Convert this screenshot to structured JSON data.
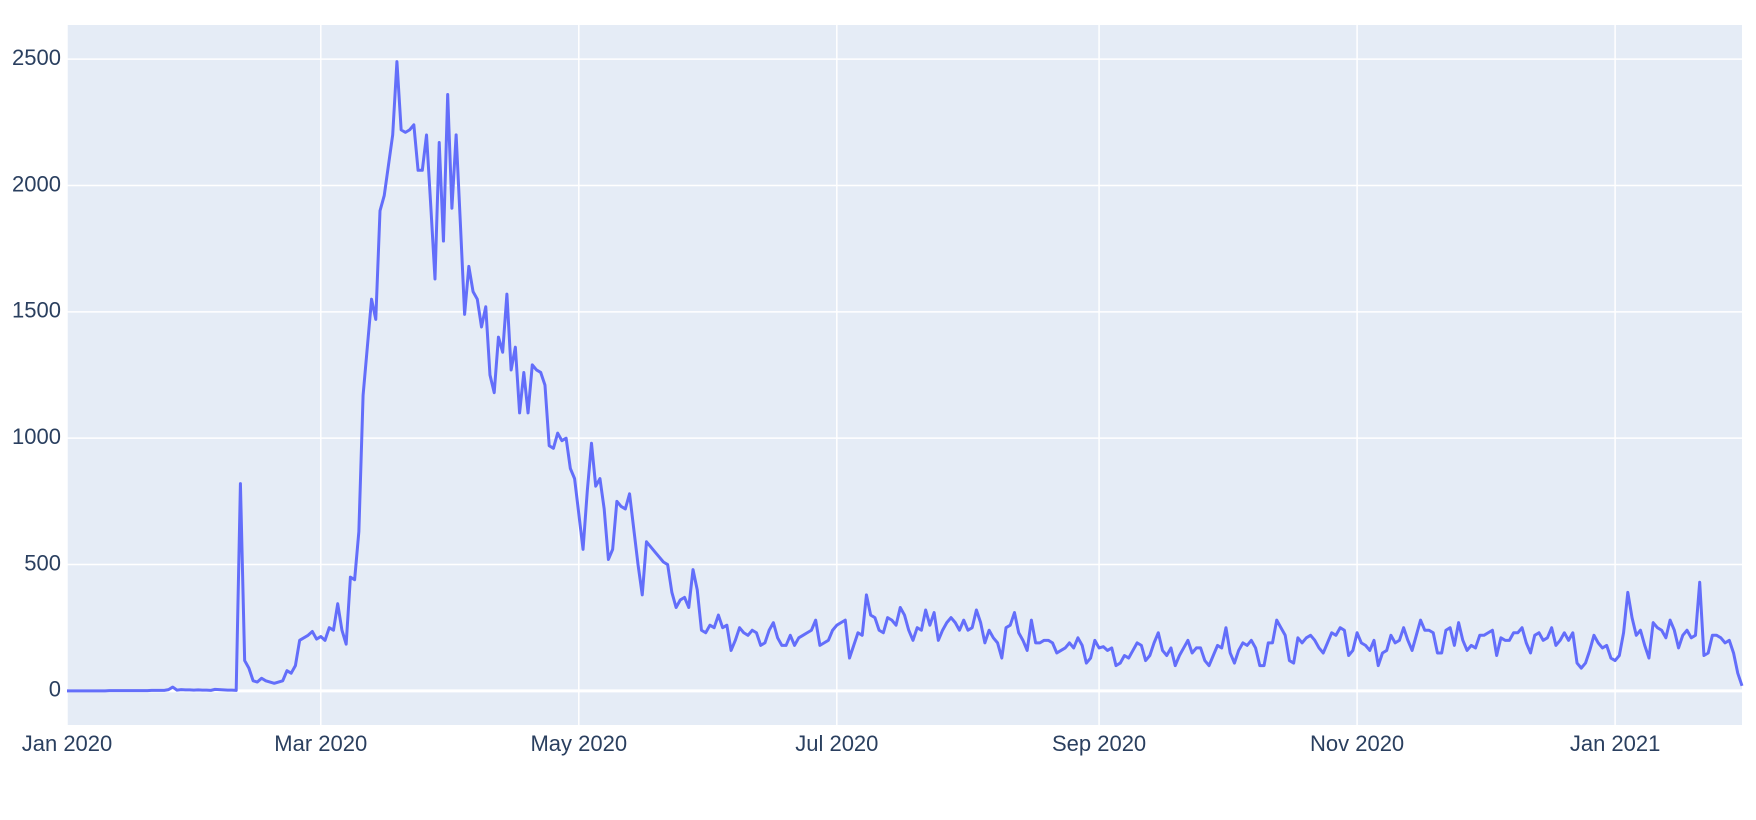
{
  "chart_data": {
    "type": "line",
    "x": [
      "2020-01-01",
      "2020-01-02",
      "2020-01-03",
      "2020-01-04",
      "2020-01-05",
      "2020-01-06",
      "2020-01-07",
      "2020-01-08",
      "2020-01-09",
      "2020-01-10",
      "2020-01-11",
      "2020-01-12",
      "2020-01-13",
      "2020-01-14",
      "2020-01-15",
      "2020-01-16",
      "2020-01-17",
      "2020-01-18",
      "2020-01-19",
      "2020-01-20",
      "2020-01-21",
      "2020-01-22",
      "2020-01-23",
      "2020-01-24",
      "2020-01-25",
      "2020-01-26",
      "2020-01-27",
      "2020-01-28",
      "2020-01-29",
      "2020-01-30",
      "2020-01-31",
      "2020-02-01",
      "2020-02-02",
      "2020-02-03",
      "2020-02-04",
      "2020-02-05",
      "2020-02-06",
      "2020-02-07",
      "2020-02-08",
      "2020-02-09",
      "2020-02-10",
      "2020-02-11",
      "2020-02-12",
      "2020-02-13",
      "2020-02-14",
      "2020-02-15",
      "2020-02-16",
      "2020-02-17",
      "2020-02-18",
      "2020-02-19",
      "2020-02-20",
      "2020-02-21",
      "2020-02-22",
      "2020-02-23",
      "2020-02-24",
      "2020-02-25",
      "2020-02-26",
      "2020-02-27",
      "2020-02-28",
      "2020-02-29",
      "2020-03-01",
      "2020-03-02",
      "2020-03-03",
      "2020-03-04",
      "2020-03-05",
      "2020-03-06",
      "2020-03-07",
      "2020-03-08",
      "2020-03-09",
      "2020-03-10",
      "2020-03-11",
      "2020-03-12",
      "2020-03-13",
      "2020-03-14",
      "2020-03-15",
      "2020-03-16",
      "2020-03-17",
      "2020-03-18",
      "2020-03-19",
      "2020-03-20",
      "2020-03-21",
      "2020-03-22",
      "2020-03-23",
      "2020-03-24",
      "2020-03-25",
      "2020-03-26",
      "2020-03-27",
      "2020-03-28",
      "2020-03-29",
      "2020-03-30",
      "2020-03-31",
      "2020-04-01",
      "2020-04-02",
      "2020-04-03",
      "2020-04-04",
      "2020-04-05",
      "2020-04-06",
      "2020-04-07",
      "2020-04-08",
      "2020-04-09",
      "2020-04-10",
      "2020-04-11",
      "2020-04-12",
      "2020-04-13",
      "2020-04-14",
      "2020-04-15",
      "2020-04-16",
      "2020-04-17",
      "2020-04-18",
      "2020-04-19",
      "2020-04-20",
      "2020-04-21",
      "2020-04-22",
      "2020-04-23",
      "2020-04-24",
      "2020-04-25",
      "2020-04-26",
      "2020-04-27",
      "2020-04-28",
      "2020-04-29",
      "2020-04-30",
      "2020-05-01",
      "2020-05-02",
      "2020-05-03",
      "2020-05-04",
      "2020-05-05",
      "2020-05-06",
      "2020-05-07",
      "2020-05-08",
      "2020-05-09",
      "2020-05-10",
      "2020-05-11",
      "2020-05-12",
      "2020-05-13",
      "2020-05-14",
      "2020-05-15",
      "2020-05-16",
      "2020-05-17",
      "2020-05-18",
      "2020-05-19",
      "2020-05-20",
      "2020-05-21",
      "2020-05-22",
      "2020-05-23",
      "2020-05-24",
      "2020-05-25",
      "2020-05-26",
      "2020-05-27",
      "2020-05-28",
      "2020-05-29",
      "2020-05-30",
      "2020-05-31",
      "2020-06-01",
      "2020-06-02",
      "2020-06-03",
      "2020-06-04",
      "2020-06-05",
      "2020-06-06",
      "2020-06-07",
      "2020-06-08",
      "2020-06-09",
      "2020-06-10",
      "2020-06-11",
      "2020-06-12",
      "2020-06-13",
      "2020-06-14",
      "2020-06-15",
      "2020-06-16",
      "2020-06-17",
      "2020-06-18",
      "2020-06-19",
      "2020-06-20",
      "2020-06-21",
      "2020-06-22",
      "2020-06-23",
      "2020-06-24",
      "2020-06-25",
      "2020-06-26",
      "2020-06-27",
      "2020-06-28",
      "2020-06-29",
      "2020-06-30",
      "2020-07-01",
      "2020-07-02",
      "2020-07-03",
      "2020-07-04",
      "2020-07-05",
      "2020-07-06",
      "2020-07-07",
      "2020-07-08",
      "2020-07-09",
      "2020-07-10",
      "2020-07-11",
      "2020-07-12",
      "2020-07-13",
      "2020-07-14",
      "2020-07-15",
      "2020-07-16",
      "2020-07-17",
      "2020-07-18",
      "2020-07-19",
      "2020-07-20",
      "2020-07-21",
      "2020-07-22",
      "2020-07-23",
      "2020-07-24",
      "2020-07-25",
      "2020-07-26",
      "2020-07-27",
      "2020-07-28",
      "2020-07-29",
      "2020-07-30",
      "2020-07-31",
      "2020-08-01",
      "2020-08-02",
      "2020-08-03",
      "2020-08-04",
      "2020-08-05",
      "2020-08-06",
      "2020-08-07",
      "2020-08-08",
      "2020-08-09",
      "2020-08-10",
      "2020-08-11",
      "2020-08-12",
      "2020-08-13",
      "2020-08-14",
      "2020-08-15",
      "2020-08-16",
      "2020-08-17",
      "2020-08-18",
      "2020-08-19",
      "2020-08-20",
      "2020-08-21",
      "2020-08-22",
      "2020-08-23",
      "2020-08-24",
      "2020-08-25",
      "2020-08-26",
      "2020-08-27",
      "2020-08-28",
      "2020-08-29",
      "2020-08-30",
      "2020-08-31",
      "2020-09-01",
      "2020-09-02",
      "2020-09-03",
      "2020-09-04",
      "2020-09-05",
      "2020-09-06",
      "2020-09-07",
      "2020-09-08",
      "2020-09-09",
      "2020-09-10",
      "2020-09-11",
      "2020-09-12",
      "2020-09-13",
      "2020-09-14",
      "2020-09-15",
      "2020-09-16",
      "2020-09-17",
      "2020-09-18",
      "2020-09-19",
      "2020-09-20",
      "2020-09-21",
      "2020-09-22",
      "2020-09-23",
      "2020-09-24",
      "2020-09-25",
      "2020-09-26",
      "2020-09-27",
      "2020-09-28",
      "2020-09-29",
      "2020-09-30",
      "2020-10-01",
      "2020-10-02",
      "2020-10-03",
      "2020-10-04",
      "2020-10-05",
      "2020-10-06",
      "2020-10-07",
      "2020-10-08",
      "2020-10-09",
      "2020-10-10",
      "2020-10-11",
      "2020-10-12",
      "2020-10-13",
      "2020-10-14",
      "2020-10-15",
      "2020-10-16",
      "2020-10-17",
      "2020-10-18",
      "2020-10-19",
      "2020-10-20",
      "2020-10-21",
      "2020-10-22",
      "2020-10-23",
      "2020-10-24",
      "2020-10-25",
      "2020-10-26",
      "2020-10-27",
      "2020-10-28",
      "2020-10-29",
      "2020-10-30",
      "2020-10-31",
      "2020-11-01",
      "2020-11-02",
      "2020-11-03",
      "2020-11-04",
      "2020-11-05",
      "2020-11-06",
      "2020-11-07",
      "2020-11-08",
      "2020-11-09",
      "2020-11-10",
      "2020-11-11",
      "2020-11-12",
      "2020-11-13",
      "2020-11-14",
      "2020-11-15",
      "2020-11-16",
      "2020-11-17",
      "2020-11-18",
      "2020-11-19",
      "2020-11-20",
      "2020-11-21",
      "2020-11-22",
      "2020-11-23",
      "2020-11-24",
      "2020-11-25",
      "2020-11-26",
      "2020-11-27",
      "2020-11-28",
      "2020-11-29",
      "2020-11-30",
      "2020-12-01",
      "2020-12-02",
      "2020-12-03",
      "2020-12-04",
      "2020-12-05",
      "2020-12-06",
      "2020-12-07",
      "2020-12-08",
      "2020-12-09",
      "2020-12-10",
      "2020-12-11",
      "2020-12-12",
      "2020-12-13",
      "2020-12-14",
      "2020-12-15",
      "2020-12-16",
      "2020-12-17",
      "2020-12-18",
      "2020-12-19",
      "2020-12-20",
      "2020-12-21",
      "2020-12-22",
      "2020-12-23",
      "2020-12-24",
      "2020-12-25",
      "2020-12-26",
      "2020-12-27",
      "2020-12-28",
      "2020-12-29",
      "2020-12-30",
      "2020-12-31",
      "2021-01-01",
      "2021-01-02",
      "2021-01-03",
      "2021-01-04",
      "2021-01-05",
      "2021-01-06",
      "2021-01-07",
      "2021-01-08",
      "2021-01-09",
      "2021-01-10",
      "2021-01-11",
      "2021-01-12",
      "2021-01-13",
      "2021-01-14",
      "2021-01-15",
      "2021-01-16",
      "2021-01-17",
      "2021-01-18",
      "2021-01-19",
      "2021-01-20",
      "2021-01-21",
      "2021-01-22",
      "2021-01-23",
      "2021-01-24",
      "2021-01-25",
      "2021-01-26",
      "2021-01-27",
      "2021-01-28",
      "2021-01-29",
      "2021-01-30",
      "2021-01-31"
    ],
    "series": [
      {
        "color": "#636efa",
        "values": [
          0,
          0,
          0,
          0,
          0,
          0,
          0,
          0,
          0,
          0,
          1,
          1,
          1,
          1,
          1,
          1,
          1,
          1,
          1,
          1,
          2,
          2,
          2,
          2,
          5,
          15,
          3,
          5,
          4,
          4,
          3,
          4,
          3,
          3,
          2,
          6,
          5,
          4,
          3,
          3,
          2,
          820,
          120,
          90,
          40,
          35,
          50,
          40,
          35,
          30,
          35,
          40,
          80,
          70,
          100,
          200,
          210,
          220,
          235,
          205,
          215,
          200,
          250,
          240,
          345,
          240,
          185,
          450,
          440,
          630,
          1170,
          1360,
          1550,
          1470,
          1900,
          1960,
          2080,
          2200,
          2490,
          2220,
          2210,
          2220,
          2240,
          2060,
          2060,
          2200,
          1920,
          1630,
          2170,
          1780,
          2360,
          1910,
          2200,
          1850,
          1490,
          1680,
          1580,
          1550,
          1440,
          1520,
          1250,
          1180,
          1400,
          1340,
          1570,
          1270,
          1360,
          1100,
          1260,
          1100,
          1290,
          1270,
          1260,
          1210,
          970,
          960,
          1020,
          990,
          1000,
          880,
          840,
          700,
          560,
          790,
          980,
          810,
          840,
          720,
          520,
          560,
          750,
          730,
          720,
          780,
          640,
          500,
          380,
          590,
          570,
          550,
          530,
          510,
          500,
          390,
          330,
          360,
          370,
          330,
          480,
          400,
          240,
          230,
          260,
          250,
          300,
          250,
          260,
          160,
          200,
          250,
          230,
          220,
          240,
          230,
          180,
          190,
          240,
          270,
          210,
          180,
          180,
          220,
          180,
          210,
          220,
          230,
          240,
          280,
          180,
          190,
          200,
          240,
          260,
          270,
          280,
          130,
          180,
          230,
          220,
          380,
          300,
          290,
          240,
          230,
          290,
          280,
          260,
          330,
          300,
          240,
          200,
          250,
          240,
          320,
          260,
          310,
          200,
          240,
          270,
          290,
          270,
          240,
          280,
          240,
          250,
          320,
          270,
          190,
          240,
          210,
          190,
          130,
          250,
          260,
          310,
          230,
          200,
          160,
          280,
          190,
          190,
          200,
          200,
          190,
          150,
          160,
          170,
          190,
          170,
          210,
          180,
          110,
          130,
          200,
          170,
          175,
          160,
          170,
          100,
          110,
          140,
          130,
          160,
          190,
          180,
          120,
          140,
          190,
          230,
          160,
          140,
          170,
          100,
          140,
          170,
          200,
          150,
          170,
          170,
          120,
          100,
          140,
          180,
          170,
          250,
          150,
          110,
          160,
          190,
          180,
          200,
          170,
          100,
          100,
          190,
          190,
          280,
          250,
          220,
          120,
          110,
          210,
          190,
          210,
          220,
          200,
          170,
          150,
          190,
          230,
          220,
          250,
          240,
          140,
          160,
          230,
          190,
          180,
          160,
          200,
          100,
          150,
          160,
          220,
          190,
          200,
          250,
          200,
          160,
          220,
          280,
          240,
          240,
          230,
          150,
          150,
          240,
          250,
          180,
          270,
          200,
          160,
          180,
          170,
          220,
          220,
          230,
          240,
          140,
          210,
          200,
          200,
          230,
          230,
          250,
          190,
          150,
          220,
          230,
          200,
          210,
          250,
          180,
          200,
          230,
          200,
          230,
          110,
          90,
          110,
          160,
          220,
          190,
          170,
          180,
          130,
          120,
          140,
          230,
          390,
          290,
          220,
          240,
          180,
          130,
          270,
          250,
          240,
          210,
          280,
          240,
          170,
          220,
          240,
          210,
          220,
          430,
          140,
          150,
          220,
          220,
          210,
          190,
          200,
          150,
          70,
          20
        ]
      }
    ],
    "xlim": [
      "2020-01-01",
      "2021-01-31"
    ],
    "xticks": [
      {
        "value": "2020-01-01",
        "label": "Jan 2020"
      },
      {
        "value": "2020-03-01",
        "label": "Mar 2020"
      },
      {
        "value": "2020-05-01",
        "label": "May 2020"
      },
      {
        "value": "2020-07-01",
        "label": "Jul 2020"
      },
      {
        "value": "2020-09-01",
        "label": "Sep 2020"
      },
      {
        "value": "2020-11-01",
        "label": "Nov 2020"
      },
      {
        "value": "2021-01-01",
        "label": "Jan 2021"
      }
    ],
    "ylim": [
      -135,
      2635
    ],
    "yticks": [
      0,
      500,
      1000,
      1500,
      2000,
      2500
    ],
    "grid": true
  }
}
